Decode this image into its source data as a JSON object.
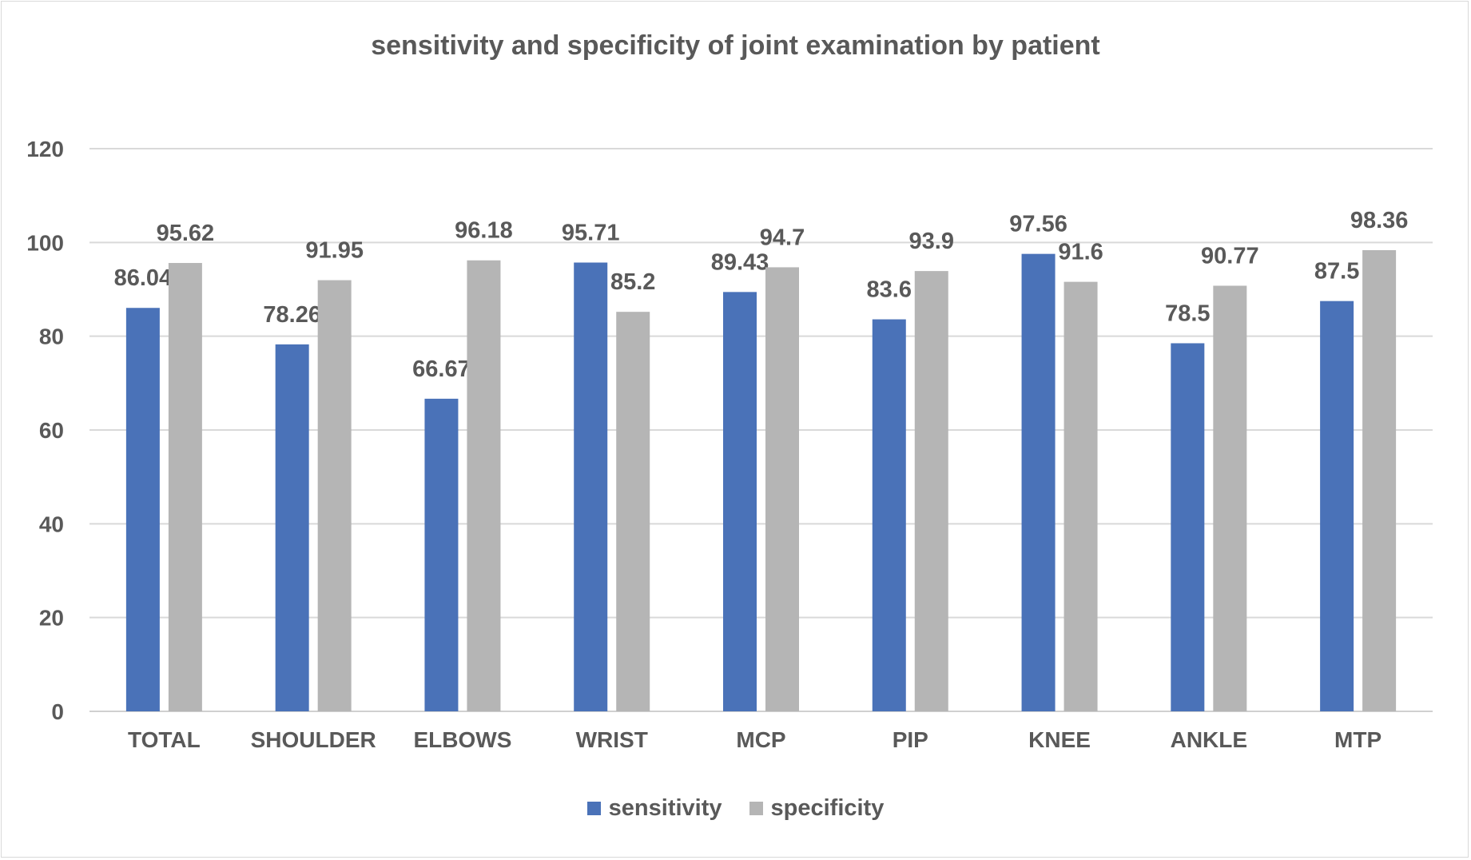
{
  "chart_data": {
    "type": "bar",
    "title": "sensitivity and specificity of joint examination by patient",
    "xlabel": "",
    "ylabel": "",
    "ylim": [
      0,
      120
    ],
    "yticks": [
      0,
      20,
      40,
      60,
      80,
      100,
      120
    ],
    "grid": true,
    "legend_position": "bottom",
    "categories": [
      "TOTAL",
      "SHOULDER",
      "ELBOWS",
      "WRIST",
      "MCP",
      "PIP",
      "KNEE",
      "ANKLE",
      "MTP"
    ],
    "series": [
      {
        "name": "sensitivity",
        "color": "#4a72b8",
        "values": [
          86.04,
          78.26,
          66.67,
          95.71,
          89.43,
          83.6,
          97.56,
          78.5,
          87.5
        ],
        "labels": [
          "86.04",
          "78.26",
          "66.67",
          "95.71",
          "89.43",
          "83.6",
          "97.56",
          "78.5",
          "87.5"
        ]
      },
      {
        "name": "specificity",
        "color": "#b5b5b5",
        "values": [
          95.62,
          91.95,
          96.18,
          85.2,
          94.7,
          93.9,
          91.6,
          90.77,
          98.36
        ],
        "labels": [
          "95.62",
          "91.95",
          "96.18",
          "85.2",
          "94.7",
          "93.9",
          "91.6",
          "90.77",
          "98.36"
        ]
      }
    ]
  }
}
